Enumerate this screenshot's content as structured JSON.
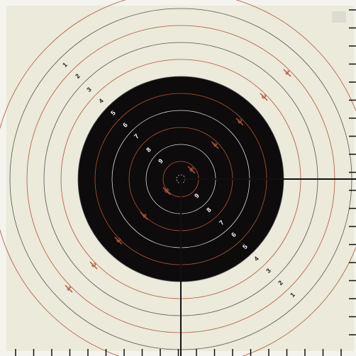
{
  "ring_numbers_upper": [
    "1",
    "2",
    "3",
    "4",
    "5",
    "6",
    "7",
    "8",
    "9"
  ],
  "ring_numbers_lower": [
    "9",
    "8",
    "7",
    "6",
    "5",
    "4",
    "3",
    "2",
    "1"
  ],
  "markers_upper": [
    "1",
    "2",
    "3",
    "4",
    "5"
  ],
  "markers_lower": [
    "5",
    "4",
    "3",
    "2",
    "1"
  ]
}
